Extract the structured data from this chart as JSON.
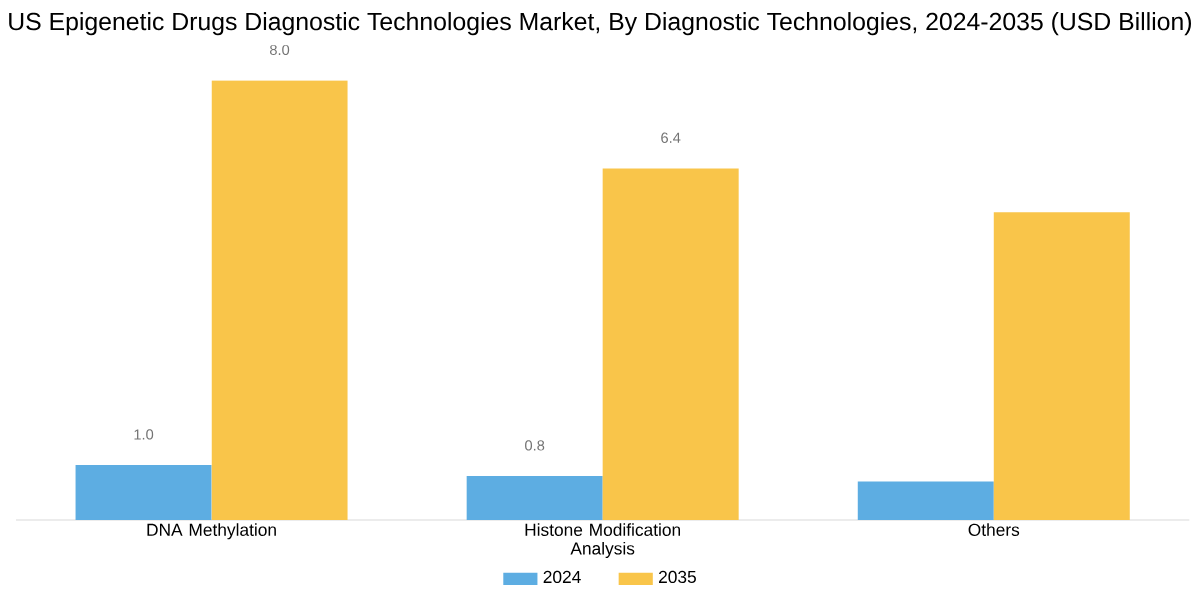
{
  "chart_data": {
    "type": "bar",
    "title": "US Epigenetic Drugs Diagnostic Technologies Market, By Diagnostic Technologies, 2024-2035 (USD Billion)",
    "categories": [
      "DNA Methylation",
      "Histone Modification Analysis",
      "Others"
    ],
    "series": [
      {
        "name": "2024",
        "color": "#5dade2",
        "values": [
          1.0,
          0.8,
          0.7
        ],
        "value_labels": [
          "1.0",
          "0.8",
          null
        ]
      },
      {
        "name": "2035",
        "color": "#f9c54a",
        "values": [
          8.0,
          6.4,
          5.6
        ],
        "value_labels": [
          "8.0",
          "6.4",
          null
        ]
      }
    ],
    "legend": "bottom"
  }
}
